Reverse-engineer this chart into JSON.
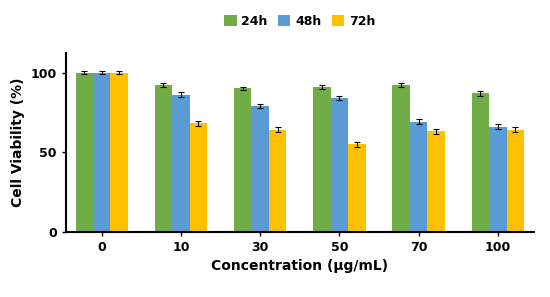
{
  "concentrations": [
    "0",
    "10",
    "30",
    "50",
    "70",
    "100"
  ],
  "values_24h": [
    100,
    92,
    90,
    91,
    92,
    87
  ],
  "values_48h": [
    100,
    86,
    79,
    84,
    69,
    66
  ],
  "values_72h": [
    100,
    68,
    64,
    55,
    63,
    64
  ],
  "errors_24h": [
    0.8,
    1.2,
    1.2,
    1.2,
    1.2,
    1.5
  ],
  "errors_48h": [
    0.8,
    1.5,
    1.5,
    1.5,
    1.5,
    1.5
  ],
  "errors_72h": [
    1.2,
    1.5,
    1.5,
    1.5,
    1.5,
    1.5
  ],
  "color_24h": "#70AD47",
  "color_48h": "#5B9BD5",
  "color_72h": "#FFC000",
  "xlabel": "Concentration (μg/mL)",
  "ylabel": "Cell Viability (%)",
  "legend_labels": [
    "24h",
    "48h",
    "72h"
  ],
  "ylim": [
    0,
    112
  ],
  "yticks": [
    0,
    50,
    100
  ],
  "bar_width": 0.22,
  "axis_fontsize": 10,
  "tick_fontsize": 9,
  "legend_fontsize": 9
}
